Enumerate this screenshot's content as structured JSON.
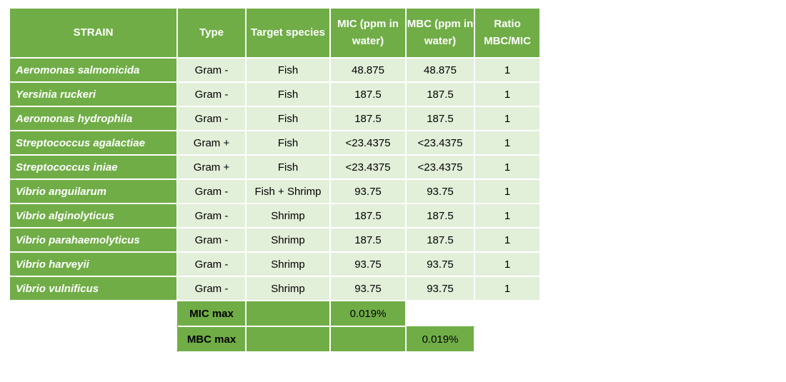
{
  "headers": {
    "strain": "STRAIN",
    "type": "Type",
    "target": "Target species",
    "mic": "MIC (ppm in water)",
    "mbc": "MBC (ppm in water)",
    "ratio": "Ratio MBC/MIC"
  },
  "rows": [
    {
      "strain": "Aeromonas salmonicida",
      "type": "Gram -",
      "target": "Fish",
      "mic": "48.875",
      "mbc": "48.875",
      "ratio": "1"
    },
    {
      "strain": "Yersinia ruckeri",
      "type": "Gram -",
      "target": "Fish",
      "mic": "187.5",
      "mbc": "187.5",
      "ratio": "1"
    },
    {
      "strain": "Aeromonas hydrophila",
      "type": "Gram -",
      "target": "Fish",
      "mic": "187.5",
      "mbc": "187.5",
      "ratio": "1"
    },
    {
      "strain": "Streptococcus agalactiae",
      "type": "Gram +",
      "target": "Fish",
      "mic": "<23.4375",
      "mbc": "<23.4375",
      "ratio": "1"
    },
    {
      "strain": "Streptococcus iniae",
      "type": "Gram +",
      "target": "Fish",
      "mic": "<23.4375",
      "mbc": "<23.4375",
      "ratio": "1"
    },
    {
      "strain": "Vibrio anguilarum",
      "type": "Gram -",
      "target": "Fish + Shrimp",
      "mic": "93.75",
      "mbc": "93.75",
      "ratio": "1"
    },
    {
      "strain": "Vibrio alginolyticus",
      "type": "Gram -",
      "target": "Shrimp",
      "mic": "187.5",
      "mbc": "187.5",
      "ratio": "1"
    },
    {
      "strain": "Vibrio parahaemolyticus",
      "type": "Gram -",
      "target": "Shrimp",
      "mic": "187.5",
      "mbc": "187.5",
      "ratio": "1"
    },
    {
      "strain": "Vibrio harveyii",
      "type": "Gram -",
      "target": "Shrimp",
      "mic": "93.75",
      "mbc": "93.75",
      "ratio": "1"
    },
    {
      "strain": "Vibrio vulnificus",
      "type": "Gram -",
      "target": "Shrimp",
      "mic": "93.75",
      "mbc": "93.75",
      "ratio": "1"
    }
  ],
  "summary": {
    "mic_max_label": "MIC max",
    "mic_max_value": "0.019%",
    "mbc_max_label": "MBC max",
    "mbc_max_value": "0.019%"
  },
  "colors": {
    "header_green": "#70ad47",
    "cell_light_green": "#e2efd9"
  }
}
